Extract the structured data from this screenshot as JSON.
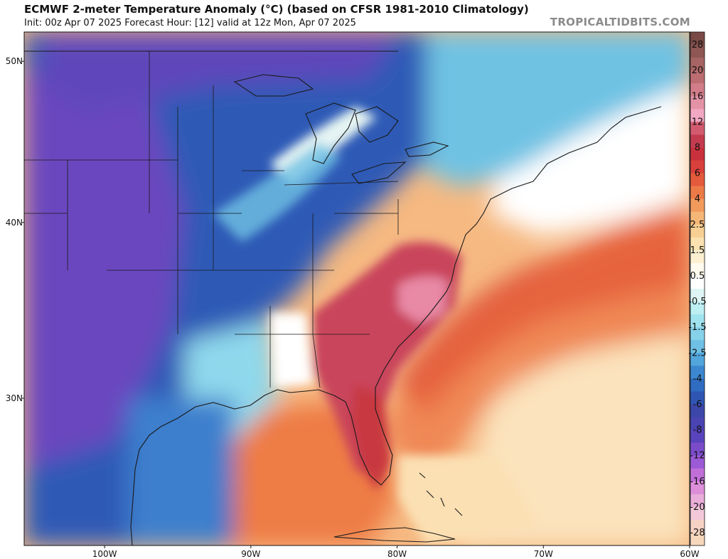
{
  "header": {
    "title": "ECMWF 2-meter Temperature Anomaly (°C) (based on CFSR 1981-2010 Climatology)",
    "subtitle": "Init: 00z Apr 07 2025   Forecast Hour: [12]   valid at 12z Mon, Apr 07 2025",
    "brand": "TROPICALTIDBITS.COM"
  },
  "map": {
    "region": "Eastern United States and Western Atlantic",
    "units": "°C",
    "lat_ticks": [
      {
        "value": 50,
        "label": "50N"
      },
      {
        "value": 40,
        "label": "40N"
      },
      {
        "value": 30,
        "label": "30N"
      }
    ],
    "lon_ticks": [
      {
        "value": -100,
        "label": "100W"
      },
      {
        "value": -90,
        "label": "90W"
      },
      {
        "value": -80,
        "label": "80W"
      },
      {
        "value": -70,
        "label": "70W"
      },
      {
        "value": -60,
        "label": "60W"
      }
    ]
  },
  "colorbar": {
    "bins": [
      {
        "label": "28",
        "color": "#7a4a46"
      },
      {
        "label": "",
        "color": "#8e5753"
      },
      {
        "label": "20",
        "color": "#a66463"
      },
      {
        "label": "",
        "color": "#bc6d72"
      },
      {
        "label": "16",
        "color": "#d27d89"
      },
      {
        "label": "",
        "color": "#e493a7"
      },
      {
        "label": "12",
        "color": "#f2a7c3"
      },
      {
        "label": "",
        "color": "#d45b6f"
      },
      {
        "label": "8",
        "color": "#c43b4f"
      },
      {
        "label": "",
        "color": "#c9313c"
      },
      {
        "label": "6",
        "color": "#d8403b"
      },
      {
        "label": "",
        "color": "#e45a3c"
      },
      {
        "label": "4",
        "color": "#ec7a48"
      },
      {
        "label": "",
        "color": "#f19a5c"
      },
      {
        "label": "2.5",
        "color": "#f5b777"
      },
      {
        "label": "",
        "color": "#f8cf93"
      },
      {
        "label": "1.5",
        "color": "#fbe2b0"
      },
      {
        "label": "",
        "color": "#fdf0d0"
      },
      {
        "label": "0.5",
        "color": "#fffbee"
      },
      {
        "label": "",
        "color": "#ffffff"
      },
      {
        "label": "-0.5",
        "color": "#dff5f5"
      },
      {
        "label": "",
        "color": "#bdeef2"
      },
      {
        "label": "-1.5",
        "color": "#9fe3ee"
      },
      {
        "label": "",
        "color": "#86d2ea"
      },
      {
        "label": "-2.5",
        "color": "#6ec0e4"
      },
      {
        "label": "",
        "color": "#52a6dc"
      },
      {
        "label": "-4",
        "color": "#3b88d0"
      },
      {
        "label": "",
        "color": "#2f6cc2"
      },
      {
        "label": "-6",
        "color": "#2f55b4"
      },
      {
        "label": "",
        "color": "#3c47a9"
      },
      {
        "label": "-8",
        "color": "#4a43b2"
      },
      {
        "label": "",
        "color": "#5a44bd"
      },
      {
        "label": "-12",
        "color": "#7a4cc9"
      },
      {
        "label": "",
        "color": "#9d5ad6"
      },
      {
        "label": "-16",
        "color": "#c06fd9"
      },
      {
        "label": "",
        "color": "#dc8ed9"
      },
      {
        "label": "-20",
        "color": "#e9add9"
      },
      {
        "label": "",
        "color": "#f3c9d9"
      },
      {
        "label": "-28",
        "color": "#f5d2c4"
      },
      {
        "label": "",
        "color": "#f7d7bc"
      }
    ]
  }
}
